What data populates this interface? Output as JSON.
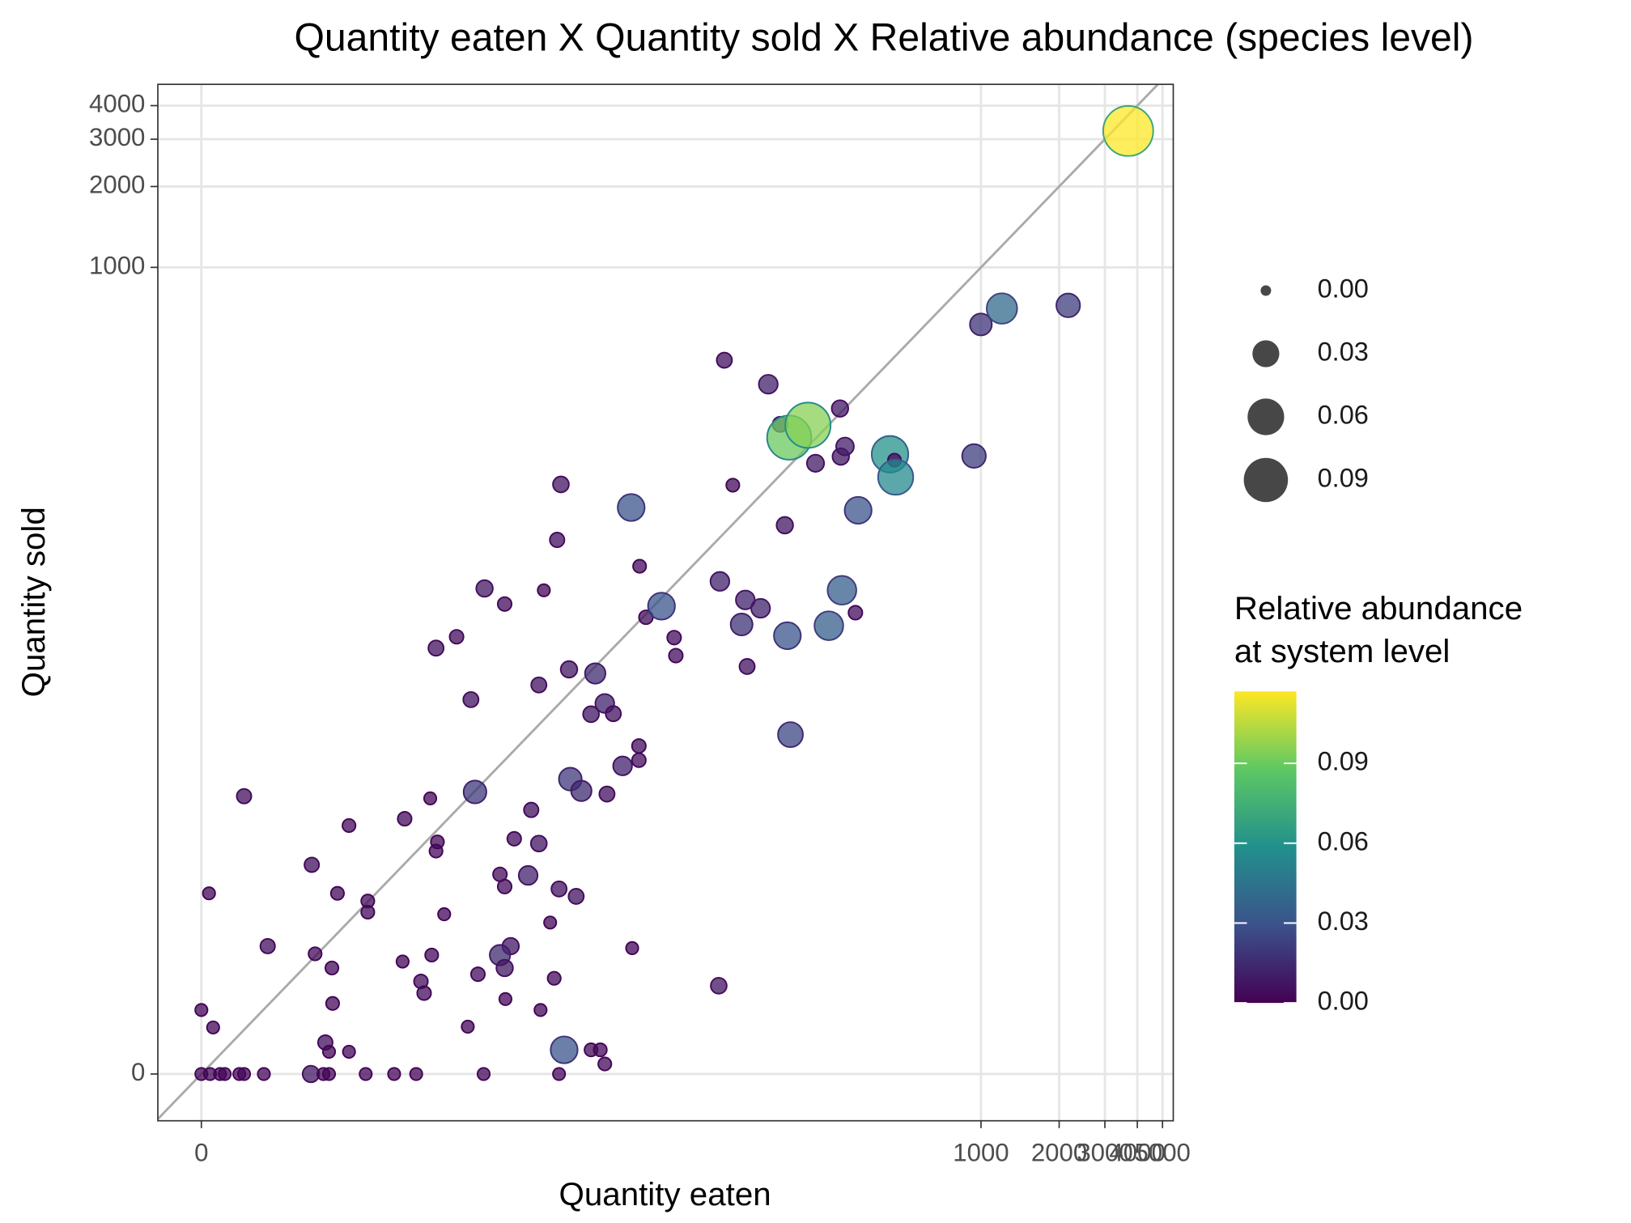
{
  "chart_data": {
    "type": "scatter",
    "title": "Quantity eaten X Quantity sold X Relative abundance (species level)",
    "x_label": "Quantity eaten",
    "y_label": "Quantity sold",
    "xscale": "log1p",
    "yscale": "log1p",
    "grid": true,
    "xlim": [
      -0.32,
      5500
    ],
    "ylim": [
      -0.33,
      4800
    ],
    "xticks": [
      0,
      1000,
      2000,
      3000,
      4000,
      5000
    ],
    "yticks": [
      0,
      1000,
      2000,
      3000,
      4000
    ],
    "x": [
      0,
      0.08,
      0.18,
      0.23,
      0.4,
      0.46,
      0.74,
      1.64,
      1.95,
      2.1,
      3.29,
      4.52,
      5.71,
      11.2,
      22.8,
      0,
      0.11,
      0.07,
      0.46,
      0.8,
      1.66,
      1.74,
      2.18,
      2.34,
      2.7,
      3.37,
      3.37,
      2.0,
      2.1,
      2.7,
      2.2,
      4.95,
      5.06,
      6.0,
      6.2,
      6.6,
      6.7,
      7.1,
      7.0,
      7.6,
      9.6,
      10.6,
      10.3,
      9.9,
      7.0,
      8.6,
      11.3,
      13.7,
      13.1,
      13.7,
      13.8,
      14.5,
      13.1,
      13.7,
      15.0,
      17.1,
      17.6,
      18.9,
      18.9,
      19.2,
      19.8,
      21.0,
      21.8,
      22.4,
      22.8,
      23.2,
      26.7,
      25.3,
      28.0,
      25.0,
      31.8,
      34.7,
      30.6,
      37.5,
      35.4,
      40.8,
      47.3,
      47.3,
      23.9,
      30.6,
      33.3,
      34.7,
      44.5,
      44.1,
      47.6,
      50.4,
      58.0,
      65,
      66,
      97,
      98,
      102,
      110,
      119,
      123,
      125,
      141,
      151,
      168,
      175,
      179,
      184,
      182,
      215,
      230,
      259,
      286,
      288,
      291,
      299,
      328,
      336,
      446,
      464,
      469,
      940,
      999,
      1204,
      2167,
      3688
    ],
    "y": [
      0,
      0,
      0,
      0,
      0,
      0,
      0,
      0,
      0,
      0,
      0,
      0,
      0,
      0,
      0,
      0.73,
      0.49,
      3.7,
      9.8,
      1.99,
      5.0,
      1.8,
      1.48,
      3.7,
      7.4,
      3.4,
      3.0,
      0.31,
      0.21,
      0.21,
      0.83,
      1.62,
      7.9,
      1.21,
      1.0,
      9.6,
      1.77,
      6.3,
      5.75,
      2.93,
      0.5,
      1.35,
      10.2,
      23.7,
      37.4,
      41.3,
      63,
      55,
      4.53,
      3.98,
      0.9,
      1.99,
      1.77,
      1.48,
      6.5,
      4.48,
      8.6,
      6.2,
      27.0,
      0.73,
      62,
      2.66,
      1.27,
      96,
      3.88,
      155,
      3.58,
      11.5,
      10.3,
      31.0,
      29.9,
      22.9,
      20.8,
      20.9,
      10.0,
      13.0,
      13.7,
      15.6,
      0.23,
      0.23,
      0.23,
      0.09,
      1.94,
      127,
      76.4,
      49,
      54,
      41,
      35.0,
      1.13,
      67,
      451,
      154,
      46,
      57,
      31.8,
      53,
      367,
      260,
      109,
      41.7,
      17.3,
      232,
      258,
      186,
      45.5,
      298,
      197,
      62,
      215,
      51,
      124,
      201,
      191,
      165,
      198,
      613,
      703,
      722,
      3220
    ],
    "abundance": [
      0.002,
      0.002,
      0.002,
      0.002,
      0.002,
      0.002,
      0.002,
      0.008,
      0.002,
      0.002,
      0.002,
      0.002,
      0.002,
      0.002,
      0.002,
      0.002,
      0.002,
      0.002,
      0.005,
      0.005,
      0.005,
      0.003,
      0.003,
      0.003,
      0.003,
      0.003,
      0.003,
      0.005,
      0.002,
      0.002,
      0.003,
      0.002,
      0.004,
      0.004,
      0.004,
      0.002,
      0.003,
      0.003,
      0.003,
      0.002,
      0.002,
      0.004,
      0.02,
      0.006,
      0.006,
      0.004,
      0.008,
      0.004,
      0.004,
      0.004,
      0.002,
      0.008,
      0.015,
      0.008,
      0.004,
      0.012,
      0.005,
      0.007,
      0.006,
      0.002,
      0.002,
      0.002,
      0.003,
      0.005,
      0.006,
      0.007,
      0.006,
      0.02,
      0.015,
      0.008,
      0.015,
      0.012,
      0.007,
      0.006,
      0.006,
      0.012,
      0.004,
      0.004,
      0.03,
      0.003,
      0.003,
      0.003,
      0.002,
      0.03,
      0.003,
      0.004,
      0.03,
      0.004,
      0.004,
      0.007,
      0.012,
      0.006,
      0.003,
      0.018,
      0.012,
      0.006,
      0.012,
      0.012,
      0.006,
      0.008,
      0.03,
      0.025,
      0.09,
      0.095,
      0.009,
      0.035,
      0.008,
      0.008,
      0.035,
      0.01,
      0.004,
      0.03,
      0.06,
      0.003,
      0.055,
      0.022,
      0.018,
      0.04,
      0.022,
      0.117
    ],
    "size_legend_ticks": [
      {
        "value": 0,
        "label": "0.00"
      },
      {
        "value": 0.03,
        "label": "0.03"
      },
      {
        "value": 0.06,
        "label": "0.06"
      },
      {
        "value": 0.09,
        "label": "0.09"
      }
    ],
    "color_legend_title": [
      "Relative abundance",
      "at system level"
    ],
    "color_lim": [
      0,
      0.117
    ],
    "color_ticks": [
      {
        "value": 0,
        "label": "0.00"
      },
      {
        "value": 0.03,
        "label": "0.03"
      },
      {
        "value": 0.06,
        "label": "0.06"
      },
      {
        "value": 0.09,
        "label": "0.09"
      }
    ],
    "colormap": [
      "#440154",
      "#3b528b",
      "#21908c",
      "#5dc863",
      "#fde725"
    ],
    "reference_line_color": "#aaaaaa"
  }
}
